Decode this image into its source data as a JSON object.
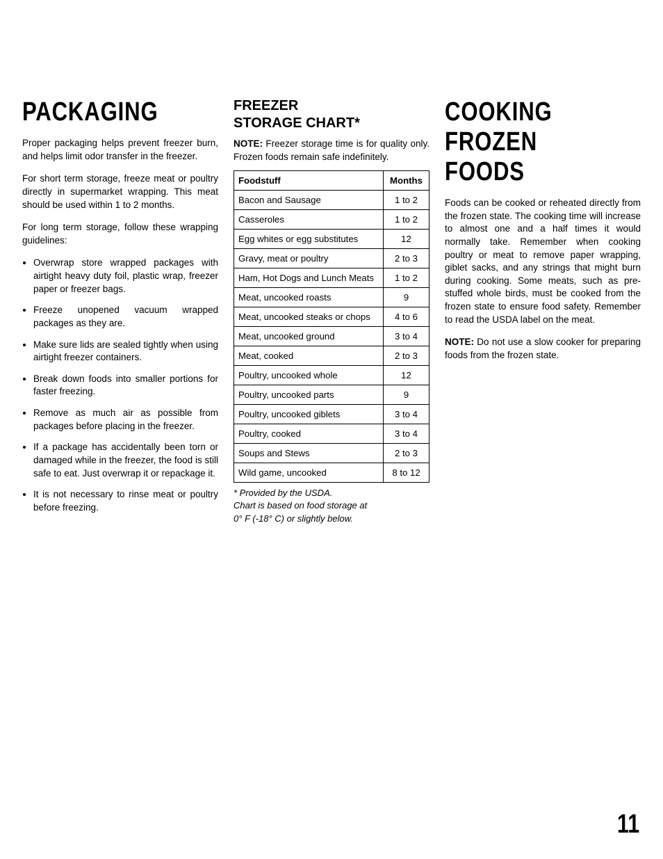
{
  "page_number": "11",
  "col1": {
    "heading": "Packaging",
    "paragraphs": [
      "Proper packaging helps prevent freezer burn, and helps limit odor transfer in the freezer.",
      "For short term storage, freeze meat or poultry directly in supermarket wrapping. This meat should be used within 1 to 2 months.",
      "For long term storage, follow these wrapping guidelines:"
    ],
    "bullets": [
      "Overwrap store wrapped packages with airtight heavy duty foil, plastic wrap, freezer paper or freezer bags.",
      "Freeze unopened vacuum wrapped packages as they are.",
      "Make sure lids are sealed tightly when using airtight freezer containers.",
      "Break down foods into smaller portions for faster freezing.",
      "Remove as much air as possible from packages before placing in the freezer.",
      "If a package has accidentally been torn or damaged while in the freezer, the food is still safe to eat. Just overwrap it or repackage it.",
      "It is not necessary to rinse meat or poultry before freezing."
    ]
  },
  "col2": {
    "heading": "FREEZER\nSTORAGE CHART*",
    "note_lead": "NOTE:",
    "note_rest": " Freezer storage time is for quality only. Frozen foods remain safe indefinitely.",
    "table": {
      "type": "table",
      "columns": [
        "Foodstuff",
        "Months"
      ],
      "rows": [
        [
          "Bacon and Sausage",
          "1 to 2"
        ],
        [
          "Casseroles",
          "1 to 2"
        ],
        [
          "Egg whites or egg substitutes",
          "12"
        ],
        [
          "Gravy, meat or poultry",
          "2 to 3"
        ],
        [
          "Ham, Hot Dogs and Lunch Meats",
          "1 to 2"
        ],
        [
          "Meat, uncooked roasts",
          "9"
        ],
        [
          "Meat, uncooked steaks or chops",
          "4 to 6"
        ],
        [
          "Meat, uncooked ground",
          "3 to 4"
        ],
        [
          "Meat, cooked",
          "2 to 3"
        ],
        [
          "Poultry, uncooked whole",
          "12"
        ],
        [
          "Poultry, uncooked parts",
          "9"
        ],
        [
          "Poultry, uncooked giblets",
          "3 to 4"
        ],
        [
          "Poultry, cooked",
          "3 to 4"
        ],
        [
          "Soups and Stews",
          "2 to 3"
        ],
        [
          "Wild game, uncooked",
          "8 to 12"
        ]
      ],
      "border_color": "#000000",
      "header_fontweight": "bold",
      "fontsize": 13.2
    },
    "footnote": "* Provided by the USDA.\n  Chart is based on food storage at\n  0° F (-18° C) or slightly below."
  },
  "col3": {
    "heading": "Cooking frozen foods",
    "paragraphs": [
      "Foods can be cooked or reheated directly from the frozen state. The cooking time will increase to almost one and a half times it would normally take. Remember when cooking poultry or meat to remove paper wrapping, giblet sacks, and any strings that might burn during cooking. Some meats, such as pre-stuffed whole birds, must be cooked from the frozen state to ensure food safety. Remember to read the USDA label on the meat."
    ],
    "note_lead": "NOTE:",
    "note_rest": " Do not use a slow cooker for preparing foods from the frozen state."
  }
}
